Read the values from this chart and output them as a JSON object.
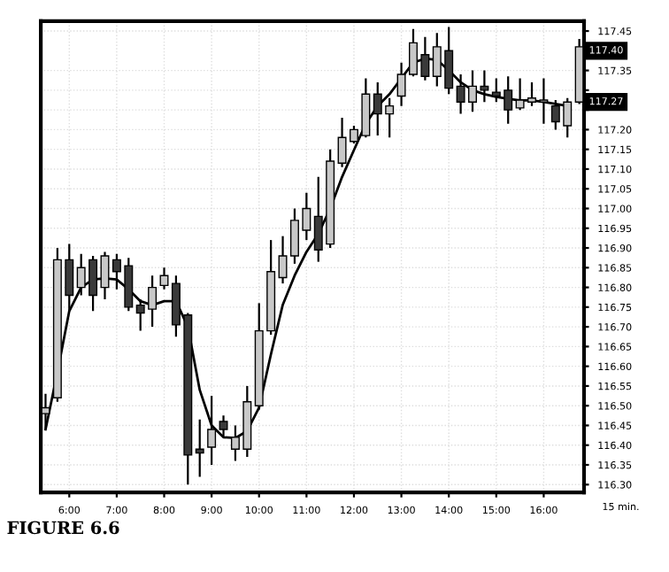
{
  "chart_data": {
    "type": "candlestick",
    "title": "FIGURE 6.6",
    "x": [
      5.5,
      5.75,
      6.0,
      6.25,
      6.5,
      6.75,
      7.0,
      7.25,
      7.5,
      7.75,
      8.0,
      8.25,
      8.5,
      8.75,
      9.0,
      9.25,
      9.5,
      9.75,
      10.0,
      10.25,
      10.5,
      10.75,
      11.0,
      11.25,
      11.5,
      11.75,
      12.0,
      12.25,
      12.5,
      12.75,
      13.0,
      13.25,
      13.5,
      13.75,
      14.0,
      14.25,
      14.5,
      14.75,
      15.0,
      15.25,
      15.5,
      15.75,
      16.0,
      16.25,
      16.5,
      16.75
    ],
    "ohlc": [
      [
        116.48,
        116.53,
        116.44,
        116.495
      ],
      [
        116.52,
        116.9,
        116.51,
        116.87
      ],
      [
        116.87,
        116.91,
        116.74,
        116.78
      ],
      [
        116.8,
        116.885,
        116.78,
        116.85
      ],
      [
        116.87,
        116.88,
        116.74,
        116.78
      ],
      [
        116.8,
        116.89,
        116.77,
        116.88
      ],
      [
        116.87,
        116.885,
        116.795,
        116.84
      ],
      [
        116.855,
        116.875,
        116.74,
        116.75
      ],
      [
        116.755,
        116.77,
        116.69,
        116.735
      ],
      [
        116.745,
        116.83,
        116.7,
        116.8
      ],
      [
        116.805,
        116.85,
        116.795,
        116.83
      ],
      [
        116.81,
        116.83,
        116.675,
        116.705
      ],
      [
        116.73,
        116.735,
        116.3,
        116.375
      ],
      [
        116.39,
        116.465,
        116.32,
        116.38
      ],
      [
        116.395,
        116.525,
        116.35,
        116.44
      ],
      [
        116.46,
        116.475,
        116.42,
        116.44
      ],
      [
        116.39,
        116.45,
        116.36,
        116.42
      ],
      [
        116.39,
        116.55,
        116.37,
        116.51
      ],
      [
        116.5,
        116.76,
        116.49,
        116.69
      ],
      [
        116.69,
        116.92,
        116.68,
        116.84
      ],
      [
        116.825,
        116.93,
        116.81,
        116.88
      ],
      [
        116.88,
        117.0,
        116.86,
        116.97
      ],
      [
        116.945,
        117.04,
        116.92,
        117.0
      ],
      [
        116.98,
        117.08,
        116.865,
        116.895
      ],
      [
        116.91,
        117.15,
        116.9,
        117.12
      ],
      [
        117.115,
        117.23,
        117.105,
        117.18
      ],
      [
        117.17,
        117.21,
        117.165,
        117.2
      ],
      [
        117.185,
        117.33,
        117.18,
        117.29
      ],
      [
        117.29,
        117.32,
        117.185,
        117.24
      ],
      [
        117.24,
        117.28,
        117.18,
        117.26
      ],
      [
        117.285,
        117.37,
        117.26,
        117.34
      ],
      [
        117.34,
        117.455,
        117.335,
        117.42
      ],
      [
        117.39,
        117.435,
        117.325,
        117.335
      ],
      [
        117.335,
        117.445,
        117.31,
        117.41
      ],
      [
        117.4,
        117.46,
        117.29,
        117.305
      ],
      [
        117.31,
        117.34,
        117.24,
        117.27
      ],
      [
        117.27,
        117.35,
        117.245,
        117.31
      ],
      [
        117.31,
        117.35,
        117.27,
        117.3
      ],
      [
        117.295,
        117.33,
        117.27,
        117.285
      ],
      [
        117.3,
        117.335,
        117.215,
        117.25
      ],
      [
        117.255,
        117.33,
        117.25,
        117.275
      ],
      [
        117.27,
        117.32,
        117.26,
        117.28
      ],
      [
        117.27,
        117.33,
        117.215,
        117.275
      ],
      [
        117.26,
        117.275,
        117.2,
        117.22
      ],
      [
        117.21,
        117.28,
        117.18,
        117.27
      ],
      [
        117.27,
        117.43,
        117.265,
        117.41
      ]
    ],
    "colors": [
      "#c8c8c8",
      "#c8c8c8",
      "#3a3a3a",
      "#c8c8c8",
      "#3a3a3a",
      "#c8c8c8",
      "#3a3a3a",
      "#3a3a3a",
      "#3a3a3a",
      "#c8c8c8",
      "#c8c8c8",
      "#3a3a3a",
      "#3a3a3a",
      "#3a3a3a",
      "#c8c8c8",
      "#3a3a3a",
      "#c8c8c8",
      "#c8c8c8",
      "#c8c8c8",
      "#c8c8c8",
      "#c8c8c8",
      "#c8c8c8",
      "#c8c8c8",
      "#3a3a3a",
      "#c8c8c8",
      "#c8c8c8",
      "#c8c8c8",
      "#c8c8c8",
      "#3a3a3a",
      "#c8c8c8",
      "#c8c8c8",
      "#c8c8c8",
      "#3a3a3a",
      "#c8c8c8",
      "#3a3a3a",
      "#3a3a3a",
      "#c8c8c8",
      "#3a3a3a",
      "#3a3a3a",
      "#3a3a3a",
      "#c8c8c8",
      "#c8c8c8",
      "#c8c8c8",
      "#3a3a3a",
      "#c8c8c8",
      "#c8c8c8"
    ],
    "series": [
      {
        "type": "line",
        "color": "#000000",
        "x": [
          5.5,
          5.75,
          6.0,
          6.25,
          6.5,
          6.75,
          7.0,
          7.25,
          7.5,
          7.75,
          8.0,
          8.25,
          8.5,
          8.75,
          9.0,
          9.25,
          9.5,
          9.75,
          10.0,
          10.25,
          10.5,
          10.75,
          11.0,
          11.25,
          11.5,
          11.75,
          12.0,
          12.25,
          12.5,
          12.75,
          13.0,
          13.25,
          13.5,
          13.75,
          14.0,
          14.25,
          14.5,
          14.75,
          15.0,
          15.25,
          15.5,
          15.75,
          16.0,
          16.25,
          16.5
        ],
        "values": [
          116.44,
          116.585,
          116.74,
          116.8,
          116.82,
          116.823,
          116.82,
          116.795,
          116.765,
          116.755,
          116.765,
          116.765,
          116.7,
          116.54,
          116.45,
          116.42,
          116.418,
          116.436,
          116.495,
          116.63,
          116.756,
          116.83,
          116.89,
          116.936,
          117.0,
          117.08,
          117.148,
          117.215,
          117.26,
          117.29,
          117.33,
          117.37,
          117.38,
          117.377,
          117.35,
          117.32,
          117.3,
          117.29,
          117.283,
          117.278,
          117.274,
          117.274,
          117.27,
          117.265,
          117.26
        ]
      }
    ],
    "xlim": [
      5.4,
      16.85
    ],
    "ylim": [
      116.28,
      117.475
    ],
    "xticks": [
      {
        "value": 6,
        "label": "6:00"
      },
      {
        "value": 7,
        "label": "7:00"
      },
      {
        "value": 8,
        "label": "8:00"
      },
      {
        "value": 9,
        "label": "9:00"
      },
      {
        "value": 10,
        "label": "10:00"
      },
      {
        "value": 11,
        "label": "11:00"
      },
      {
        "value": 12,
        "label": "12:00"
      },
      {
        "value": 13,
        "label": "13:00"
      },
      {
        "value": 14,
        "label": "14:00"
      },
      {
        "value": 15,
        "label": "15:00"
      },
      {
        "value": 16,
        "label": "16:00"
      }
    ],
    "yticks": [
      {
        "value": 116.3,
        "label": "116.30"
      },
      {
        "value": 116.35,
        "label": "116.35"
      },
      {
        "value": 116.4,
        "label": "116.40"
      },
      {
        "value": 116.45,
        "label": "116.45"
      },
      {
        "value": 116.5,
        "label": "116.50"
      },
      {
        "value": 116.55,
        "label": "116.55"
      },
      {
        "value": 116.6,
        "label": "116.60"
      },
      {
        "value": 116.65,
        "label": "116.65"
      },
      {
        "value": 116.7,
        "label": "116.70"
      },
      {
        "value": 116.75,
        "label": "116.75"
      },
      {
        "value": 116.8,
        "label": "116.80"
      },
      {
        "value": 116.85,
        "label": "116.85"
      },
      {
        "value": 116.9,
        "label": "116.90"
      },
      {
        "value": 116.95,
        "label": "116.95"
      },
      {
        "value": 117.0,
        "label": "117.00"
      },
      {
        "value": 117.05,
        "label": "117.05"
      },
      {
        "value": 117.1,
        "label": "117.10"
      },
      {
        "value": 117.15,
        "label": "117.15"
      },
      {
        "value": 117.2,
        "label": "117.20"
      },
      {
        "value": 117.25,
        "label": null
      },
      {
        "value": 117.3,
        "label": null
      },
      {
        "value": 117.35,
        "label": "117.35"
      },
      {
        "value": 117.45,
        "label": "117.45"
      }
    ],
    "annotations": [
      {
        "text": "117.40",
        "y": 117.4
      },
      {
        "text": "117.27",
        "y": 117.27
      },
      "15 min."
    ],
    "grid": true
  }
}
